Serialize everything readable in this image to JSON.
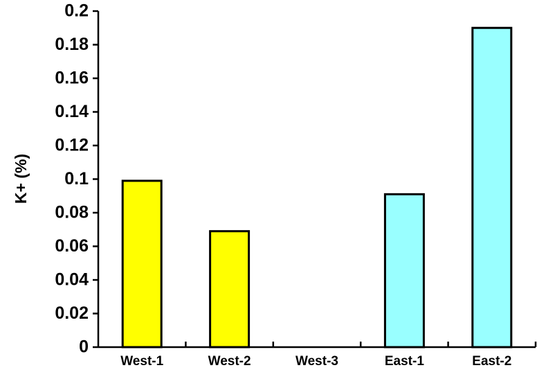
{
  "chart_data": {
    "type": "bar",
    "title": "",
    "xlabel": "",
    "ylabel": "K+ (%)",
    "ylim": [
      0,
      0.2
    ],
    "yticks": [
      "0",
      "0.02",
      "0.04",
      "0.06",
      "0.08",
      "0.1",
      "0.12",
      "0.14",
      "0.16",
      "0.18",
      "0.2"
    ],
    "categories": [
      "West-1",
      "West-2",
      "West-3",
      "East-1",
      "East-2"
    ],
    "values": [
      0.099,
      0.069,
      0,
      0.091,
      0.19
    ],
    "colors": [
      "#ffff00",
      "#ffff00",
      "#ffff00",
      "#99ffff",
      "#99ffff"
    ],
    "grid": false,
    "legend": "none"
  }
}
